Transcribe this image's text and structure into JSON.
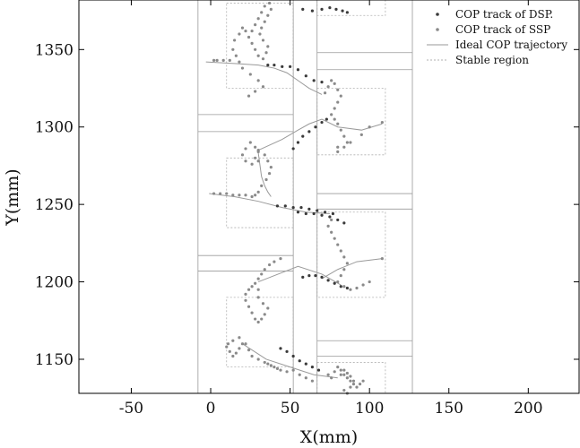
{
  "chart_data": {
    "type": "scatter",
    "xlabel": "X(mm)",
    "ylabel": "Y(mm)",
    "xlim": [
      -83,
      232
    ],
    "ylim": [
      1128,
      1382
    ],
    "xticks": [
      -50,
      0,
      50,
      100,
      150,
      200
    ],
    "yticks": [
      1150,
      1200,
      1250,
      1300,
      1350
    ],
    "grid": false,
    "legend_position": "top-right",
    "colors": {
      "dsp": "#3a3a3a",
      "ssp": "#8a8a8a",
      "ideal": "#9a9a9a",
      "stable": "#b0b0b0",
      "boundary": "#9a9a9a"
    },
    "legend": [
      {
        "label": "COP track of DSP.",
        "style": "dsp-marker"
      },
      {
        "label": "COP track of SSP",
        "style": "ssp-marker"
      },
      {
        "label": "Ideal COP trajectory",
        "style": "ideal-line"
      },
      {
        "label": "Stable region",
        "style": "stable-dotted"
      }
    ],
    "boundaries": [
      {
        "name": "left-foot-outer",
        "segments": [
          [
            -8,
            1128,
            -8,
            1382
          ]
        ]
      },
      {
        "name": "left-foot-inner",
        "segments": [
          [
            52,
            1128,
            52,
            1382
          ]
        ]
      },
      {
        "name": "right-foot-inner",
        "segments": [
          [
            67,
            1128,
            67,
            1382
          ]
        ]
      },
      {
        "name": "right-foot-outer",
        "segments": [
          [
            127,
            1128,
            127,
            1382
          ]
        ]
      },
      {
        "name": "step-marks",
        "segments": [
          [
            -8,
            1308,
            52,
            1308
          ],
          [
            -8,
            1297,
            52,
            1297
          ],
          [
            -8,
            1217,
            52,
            1217
          ],
          [
            -8,
            1207,
            52,
            1207
          ],
          [
            67,
            1348,
            127,
            1348
          ],
          [
            67,
            1337,
            127,
            1337
          ],
          [
            67,
            1257,
            127,
            1257
          ],
          [
            67,
            1247,
            127,
            1247
          ],
          [
            67,
            1162,
            127,
            1162
          ],
          [
            67,
            1152,
            127,
            1152
          ]
        ]
      }
    ],
    "stable_regions": [
      {
        "x": [
          10,
          52
        ],
        "y": [
          1325,
          1380
        ]
      },
      {
        "x": [
          10,
          52
        ],
        "y": [
          1235,
          1280
        ]
      },
      {
        "x": [
          10,
          52
        ],
        "y": [
          1145,
          1190
        ]
      },
      {
        "x": [
          67,
          110
        ],
        "y": [
          1372,
          1382
        ]
      },
      {
        "x": [
          67,
          110
        ],
        "y": [
          1282,
          1325
        ]
      },
      {
        "x": [
          67,
          110
        ],
        "y": [
          1190,
          1245
        ]
      },
      {
        "x": [
          67,
          110
        ],
        "y": [
          1128,
          1148
        ]
      }
    ],
    "ideal_trajectory": [
      {
        "x": [
          -3,
          15,
          30,
          40,
          48,
          55,
          62,
          70
        ],
        "y": [
          1342,
          1341,
          1340,
          1338,
          1335,
          1330,
          1325,
          1321
        ]
      },
      {
        "x": [
          30,
          45,
          55,
          62,
          70,
          80,
          95,
          108
        ],
        "y": [
          1285,
          1292,
          1298,
          1302,
          1305,
          1300,
          1298,
          1302
        ]
      },
      {
        "x": [
          30,
          32,
          34,
          36,
          38
        ],
        "y": [
          1283,
          1268,
          1262,
          1258,
          1255
        ]
      },
      {
        "x": [
          -1,
          15,
          30,
          45,
          60,
          75
        ],
        "y": [
          1257,
          1255,
          1252,
          1248,
          1245,
          1244
        ]
      },
      {
        "x": [
          70,
          80,
          92,
          108
        ],
        "y": [
          1202,
          1208,
          1213,
          1215
        ]
      },
      {
        "x": [
          30,
          45,
          55,
          70,
          82
        ],
        "y": [
          1200,
          1206,
          1210,
          1205,
          1198
        ]
      },
      {
        "x": [
          20,
          35,
          50,
          65,
          80
        ],
        "y": [
          1160,
          1150,
          1145,
          1140,
          1138
        ]
      }
    ],
    "series": [
      {
        "name": "COP track of DSP.",
        "marker": "dot",
        "x": [
          58,
          64,
          70,
          75,
          79,
          83,
          86,
          36,
          40,
          45,
          50,
          55,
          60,
          65,
          70,
          52,
          55,
          58,
          62,
          66,
          70,
          73,
          55,
          60,
          65,
          70,
          75,
          80,
          84,
          42,
          47,
          52,
          57,
          62,
          67,
          72,
          77,
          58,
          62,
          66,
          70,
          74,
          78,
          82,
          86,
          44,
          48,
          52,
          56,
          60,
          64,
          68
        ],
        "y": [
          1376,
          1375,
          1376,
          1377,
          1376,
          1375,
          1374,
          1340,
          1340,
          1339,
          1339,
          1337,
          1333,
          1330,
          1329,
          1286,
          1290,
          1294,
          1297,
          1300,
          1303,
          1305,
          1245,
          1244,
          1244,
          1243,
          1242,
          1240,
          1238,
          1249,
          1249,
          1248,
          1248,
          1247,
          1246,
          1245,
          1244,
          1203,
          1204,
          1204,
          1203,
          1201,
          1199,
          1197,
          1196,
          1157,
          1155,
          1152,
          1149,
          1147,
          1145,
          1143
        ]
      },
      {
        "name": "COP track of SSP",
        "marker": "dot",
        "x": [
          26,
          28,
          30,
          32,
          34,
          37,
          38,
          36,
          34,
          32,
          31,
          33,
          36,
          35,
          33,
          30,
          28,
          26,
          24,
          22,
          20,
          18,
          15,
          14,
          16,
          18,
          12,
          8,
          4,
          2,
          20,
          25,
          30,
          33,
          28,
          24,
          28,
          30,
          28,
          25,
          22,
          20,
          22,
          26,
          30,
          30,
          34,
          36,
          38,
          37,
          35,
          32,
          30,
          28,
          26,
          22,
          18,
          14,
          10,
          6,
          2,
          24,
          28,
          30,
          30,
          33,
          36,
          34,
          32,
          30,
          28,
          26,
          24,
          22,
          22,
          26,
          30,
          32,
          34,
          37,
          40,
          44,
          20,
          18,
          16,
          14,
          12,
          10,
          11,
          14,
          18,
          22,
          24,
          26,
          30,
          34,
          36,
          38,
          40,
          42,
          44,
          48,
          52,
          56,
          60,
          64,
          72,
          74,
          76,
          78,
          80,
          82,
          80,
          78,
          76,
          78,
          80,
          82,
          84,
          86,
          80,
          80,
          84,
          88,
          95,
          100,
          108,
          76,
          74,
          76,
          78,
          80,
          82,
          84,
          86,
          84,
          82,
          80,
          84,
          88,
          92,
          96,
          100,
          108,
          74,
          76,
          78,
          80,
          82,
          84,
          86,
          88,
          90,
          92,
          94,
          96,
          84,
          86,
          88,
          90,
          88,
          86,
          84,
          82
        ],
        "y": [
          1362,
          1366,
          1370,
          1374,
          1378,
          1380,
          1376,
          1372,
          1368,
          1364,
          1360,
          1356,
          1352,
          1348,
          1344,
          1346,
          1350,
          1354,
          1358,
          1362,
          1364,
          1360,
          1356,
          1350,
          1346,
          1342,
          1343,
          1343,
          1343,
          1343,
          1338,
          1334,
          1330,
          1326,
          1323,
          1320,
          1280,
          1284,
          1287,
          1290,
          1286,
          1282,
          1278,
          1276,
          1278,
          1285,
          1282,
          1278,
          1274,
          1270,
          1266,
          1262,
          1258,
          1256,
          1255,
          1256,
          1256,
          1256,
          1257,
          1257,
          1257,
          1195,
          1199,
          1195,
          1190,
          1186,
          1183,
          1179,
          1176,
          1174,
          1176,
          1180,
          1184,
          1188,
          1192,
          1197,
          1202,
          1205,
          1208,
          1211,
          1213,
          1215,
          1160,
          1157,
          1154,
          1152,
          1155,
          1158,
          1160,
          1162,
          1164,
          1160,
          1156,
          1152,
          1150,
          1148,
          1147,
          1146,
          1145,
          1144,
          1143,
          1142,
          1143,
          1140,
          1138,
          1136,
          1322,
          1326,
          1330,
          1328,
          1324,
          1320,
          1316,
          1312,
          1308,
          1305,
          1302,
          1298,
          1294,
          1290,
          1287,
          1284,
          1287,
          1290,
          1295,
          1300,
          1303,
          1240,
          1236,
          1232,
          1228,
          1224,
          1220,
          1216,
          1212,
          1208,
          1204,
          1200,
          1197,
          1195,
          1196,
          1198,
          1200,
          1215,
          1140,
          1138,
          1142,
          1145,
          1143,
          1140,
          1138,
          1136,
          1134,
          1132,
          1134,
          1136,
          1130,
          1128,
          1132,
          1136,
          1139,
          1141,
          1143,
          1140
        ]
      }
    ]
  }
}
